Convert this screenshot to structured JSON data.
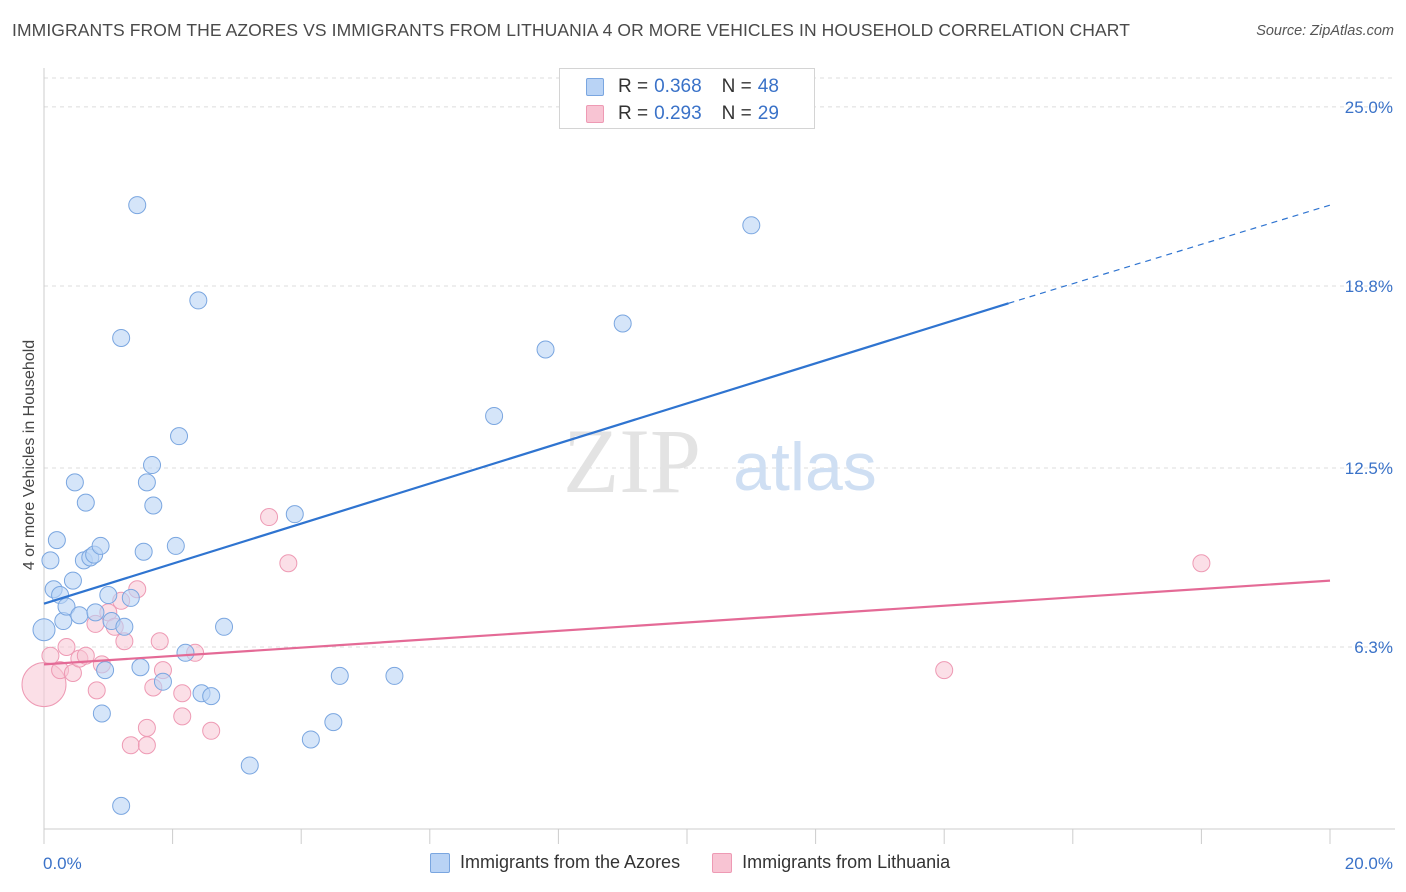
{
  "title": "IMMIGRANTS FROM THE AZORES VS IMMIGRANTS FROM LITHUANIA 4 OR MORE VEHICLES IN HOUSEHOLD CORRELATION CHART",
  "source": "Source: ZipAtlas.com",
  "watermark": {
    "zip": "ZIP",
    "atlas": "atlas"
  },
  "colors": {
    "azores_fill": "#b9d3f5",
    "azores_stroke": "#7aa6e0",
    "azores_line": "#2f74d0",
    "lithuania_fill": "#f8c4d3",
    "lithuania_stroke": "#ee9ab4",
    "lithuania_line": "#e46a96",
    "axis_label": "#3a72c8",
    "grid": "#dcdcdc"
  },
  "legend": {
    "azores": {
      "r_label": "R =",
      "r_value": "0.368",
      "n_label": "N =",
      "n_value": "48"
    },
    "lithuania": {
      "r_label": "R =",
      "r_value": "0.293",
      "n_label": "N =",
      "n_value": "29"
    }
  },
  "chart_data": {
    "type": "scatter",
    "title": "IMMIGRANTS FROM THE AZORES VS IMMIGRANTS FROM LITHUANIA 4 OR MORE VEHICLES IN HOUSEHOLD CORRELATION CHART",
    "xlabel": "",
    "ylabel": "4 or more Vehicles in Household",
    "xlim": [
      0,
      20
    ],
    "ylim": [
      0,
      26
    ],
    "x_tick_labels": [
      {
        "value": 0,
        "label": "0.0%"
      },
      {
        "value": 20,
        "label": "20.0%"
      }
    ],
    "y_tick_labels": [
      {
        "value": 6.3,
        "label": "6.3%"
      },
      {
        "value": 12.5,
        "label": "12.5%"
      },
      {
        "value": 18.8,
        "label": "18.8%"
      },
      {
        "value": 25.0,
        "label": "25.0%"
      }
    ],
    "series": [
      {
        "name": "Immigrants from the Azores",
        "color": "#7aa6e0",
        "points": [
          {
            "x": 0.0,
            "y": 6.9
          },
          {
            "x": 0.1,
            "y": 9.3
          },
          {
            "x": 0.15,
            "y": 8.3
          },
          {
            "x": 0.2,
            "y": 10.0
          },
          {
            "x": 0.25,
            "y": 8.1
          },
          {
            "x": 0.3,
            "y": 7.2
          },
          {
            "x": 0.35,
            "y": 7.7
          },
          {
            "x": 0.45,
            "y": 8.6
          },
          {
            "x": 0.48,
            "y": 12.0
          },
          {
            "x": 0.55,
            "y": 7.4
          },
          {
            "x": 0.62,
            "y": 9.3
          },
          {
            "x": 0.65,
            "y": 11.3
          },
          {
            "x": 0.72,
            "y": 9.4
          },
          {
            "x": 0.78,
            "y": 9.5
          },
          {
            "x": 0.8,
            "y": 7.5
          },
          {
            "x": 0.88,
            "y": 9.8
          },
          {
            "x": 0.9,
            "y": 4.0
          },
          {
            "x": 0.95,
            "y": 5.5
          },
          {
            "x": 1.0,
            "y": 8.1
          },
          {
            "x": 1.05,
            "y": 7.2
          },
          {
            "x": 1.2,
            "y": 17.0
          },
          {
            "x": 1.25,
            "y": 7.0
          },
          {
            "x": 1.35,
            "y": 8.0
          },
          {
            "x": 1.45,
            "y": 21.6
          },
          {
            "x": 1.5,
            "y": 5.6
          },
          {
            "x": 1.55,
            "y": 9.6
          },
          {
            "x": 1.6,
            "y": 12.0
          },
          {
            "x": 1.68,
            "y": 12.6
          },
          {
            "x": 1.7,
            "y": 11.2
          },
          {
            "x": 1.85,
            "y": 5.1
          },
          {
            "x": 2.05,
            "y": 9.8
          },
          {
            "x": 2.1,
            "y": 13.6
          },
          {
            "x": 2.2,
            "y": 6.1
          },
          {
            "x": 2.4,
            "y": 18.3
          },
          {
            "x": 2.45,
            "y": 4.7
          },
          {
            "x": 2.6,
            "y": 4.6
          },
          {
            "x": 2.8,
            "y": 7.0
          },
          {
            "x": 3.2,
            "y": 2.2
          },
          {
            "x": 3.9,
            "y": 10.9
          },
          {
            "x": 4.15,
            "y": 3.1
          },
          {
            "x": 4.5,
            "y": 3.7
          },
          {
            "x": 4.6,
            "y": 5.3
          },
          {
            "x": 5.45,
            "y": 5.3
          },
          {
            "x": 7.0,
            "y": 14.3
          },
          {
            "x": 7.8,
            "y": 16.6
          },
          {
            "x": 9.0,
            "y": 17.5
          },
          {
            "x": 11.0,
            "y": 20.9
          },
          {
            "x": 1.2,
            "y": 0.8
          }
        ],
        "trend": {
          "x_start": 0,
          "y_start": 7.8,
          "x_solid_end": 15.0,
          "y_solid_end": 18.2,
          "x_end": 20,
          "y_end": 21.6
        }
      },
      {
        "name": "Immigrants from Lithuania",
        "color": "#ee9ab4",
        "points": [
          {
            "x": 0.0,
            "y": 5.0
          },
          {
            "x": 0.1,
            "y": 6.0
          },
          {
            "x": 0.25,
            "y": 5.5
          },
          {
            "x": 0.35,
            "y": 6.3
          },
          {
            "x": 0.45,
            "y": 5.4
          },
          {
            "x": 0.55,
            "y": 5.9
          },
          {
            "x": 0.65,
            "y": 6.0
          },
          {
            "x": 0.8,
            "y": 7.1
          },
          {
            "x": 0.82,
            "y": 4.8
          },
          {
            "x": 0.9,
            "y": 5.7
          },
          {
            "x": 1.0,
            "y": 7.5
          },
          {
            "x": 1.1,
            "y": 7.0
          },
          {
            "x": 1.2,
            "y": 7.9
          },
          {
            "x": 1.25,
            "y": 6.5
          },
          {
            "x": 1.35,
            "y": 2.9
          },
          {
            "x": 1.45,
            "y": 8.3
          },
          {
            "x": 1.6,
            "y": 3.5
          },
          {
            "x": 1.6,
            "y": 2.9
          },
          {
            "x": 1.7,
            "y": 4.9
          },
          {
            "x": 1.8,
            "y": 6.5
          },
          {
            "x": 1.85,
            "y": 5.5
          },
          {
            "x": 2.15,
            "y": 4.7
          },
          {
            "x": 2.15,
            "y": 3.9
          },
          {
            "x": 2.35,
            "y": 6.1
          },
          {
            "x": 2.6,
            "y": 3.4
          },
          {
            "x": 3.5,
            "y": 10.8
          },
          {
            "x": 3.8,
            "y": 9.2
          },
          {
            "x": 14.0,
            "y": 5.5
          },
          {
            "x": 18.0,
            "y": 9.2
          }
        ],
        "trend": {
          "x_start": 0,
          "y_start": 5.7,
          "x_end": 20,
          "y_end": 8.6
        }
      }
    ]
  },
  "bottom_legend": {
    "azores": "Immigrants from the Azores",
    "lithuania": "Immigrants from Lithuania"
  }
}
